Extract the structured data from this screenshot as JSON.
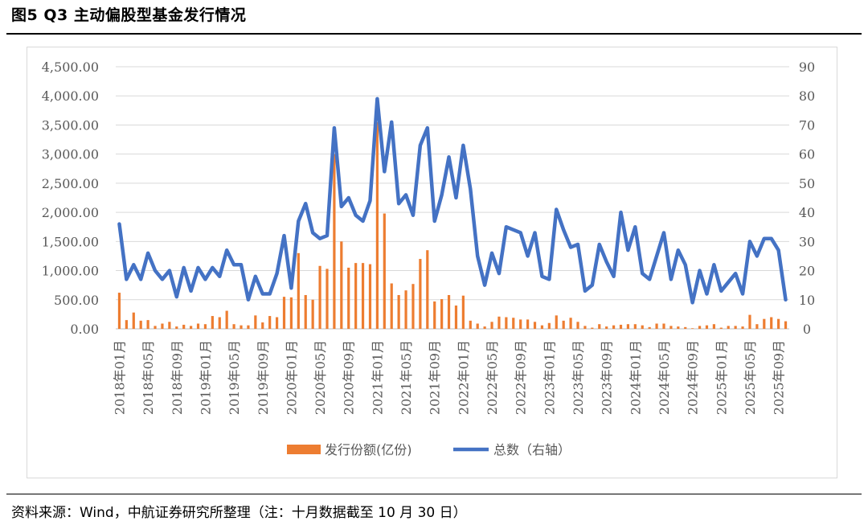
{
  "figure": {
    "title": "图5  Q3 主动偏股型基金发行情况",
    "source": "资料来源：Wind，中航证券研究所整理（注：十月数据截至 10 月 30 日）"
  },
  "chart_data": {
    "type": "bar+line",
    "x_tick_labels": [
      "2018年01月",
      "2018年05月",
      "2018年09月",
      "2019年01月",
      "2019年05月",
      "2019年09月",
      "2020年01月",
      "2020年05月",
      "2020年09月",
      "2021年01月",
      "2021年05月",
      "2021年09月",
      "2022年01月",
      "2022年05月",
      "2022年09月",
      "2023年01月",
      "2023年05月",
      "2023年09月",
      "2024年01月",
      "2024年05月",
      "2024年09月",
      "2025年01月",
      "2025年05月",
      "2025年09月"
    ],
    "y_left": {
      "ticks": [
        "0.00",
        "500.00",
        "1,000.00",
        "1,500.00",
        "2,000.00",
        "2,500.00",
        "3,000.00",
        "3,500.00",
        "4,000.00",
        "4,500.00"
      ],
      "ylim": [
        0,
        4500
      ]
    },
    "y_right": {
      "ticks": [
        "0",
        "10",
        "20",
        "30",
        "40",
        "50",
        "60",
        "70",
        "80",
        "90"
      ],
      "ylim": [
        0,
        90
      ]
    },
    "series": [
      {
        "name": "发行份额(亿份)",
        "type": "bar",
        "axis": "left",
        "color": "#ed7d31",
        "values": [
          620,
          150,
          280,
          140,
          150,
          50,
          90,
          120,
          40,
          70,
          50,
          90,
          80,
          220,
          200,
          310,
          80,
          60,
          60,
          230,
          110,
          220,
          200,
          550,
          540,
          1300,
          580,
          500,
          1080,
          1030,
          3000,
          1500,
          1050,
          1130,
          1130,
          1110,
          3550,
          1980,
          780,
          580,
          660,
          770,
          1200,
          1350,
          470,
          510,
          580,
          400,
          570,
          140,
          90,
          40,
          120,
          210,
          200,
          190,
          160,
          160,
          120,
          60,
          100,
          230,
          140,
          190,
          120,
          50,
          20,
          80,
          40,
          60,
          70,
          80,
          80,
          60,
          30,
          90,
          90,
          50,
          40,
          30,
          10,
          50,
          60,
          80,
          20,
          50,
          50,
          40,
          240,
          80,
          170,
          200,
          170,
          130
        ]
      },
      {
        "name": "总数（右轴）",
        "type": "line",
        "axis": "right",
        "color": "#4472c4",
        "values": [
          36,
          17,
          22,
          17,
          26,
          20,
          17,
          20,
          11,
          21,
          13,
          21,
          17,
          21,
          18,
          27,
          22,
          22,
          10,
          18,
          12,
          12,
          19,
          32,
          14,
          37,
          43,
          33,
          31,
          32,
          69,
          42,
          45,
          39,
          37,
          44,
          79,
          54,
          71,
          43,
          46,
          39,
          63,
          69,
          37,
          46,
          59,
          45,
          63,
          48,
          25,
          15,
          26,
          19,
          35,
          34,
          33,
          25,
          33,
          18,
          17,
          41,
          34,
          28,
          29,
          13,
          15,
          29,
          23,
          18,
          40,
          27,
          35,
          19,
          17,
          25,
          33,
          17,
          27,
          22,
          9,
          20,
          12,
          22,
          13,
          16,
          19,
          12,
          30,
          25,
          31,
          31,
          27,
          10
        ]
      }
    ]
  }
}
